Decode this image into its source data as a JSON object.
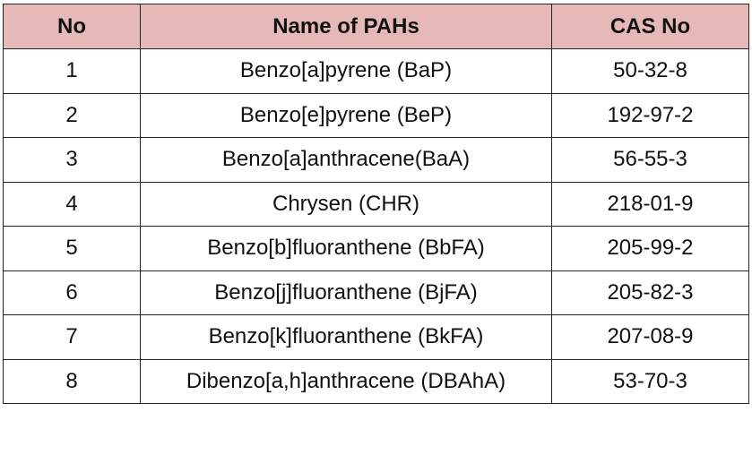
{
  "table": {
    "header": [
      "No",
      "Name of PAHs",
      "CAS No"
    ],
    "rows": [
      [
        "1",
        "Benzo[a]pyrene (BaP)",
        "50-32-8"
      ],
      [
        "2",
        "Benzo[e]pyrene (BeP)",
        "192-97-2"
      ],
      [
        "3",
        "Benzo[a]anthracene(BaA)",
        "56-55-3"
      ],
      [
        "4",
        "Chrysen (CHR)",
        "218-01-9"
      ],
      [
        "5",
        "Benzo[b]fluoranthene (BbFA)",
        "205-99-2"
      ],
      [
        "6",
        "Benzo[j]fluoranthene (BjFA)",
        "205-82-3"
      ],
      [
        "7",
        "Benzo[k]fluoranthene (BkFA)",
        "207-08-9"
      ],
      [
        "8",
        "Dibenzo[a,h]anthracene (DBAhA)",
        "53-70-3"
      ]
    ]
  }
}
